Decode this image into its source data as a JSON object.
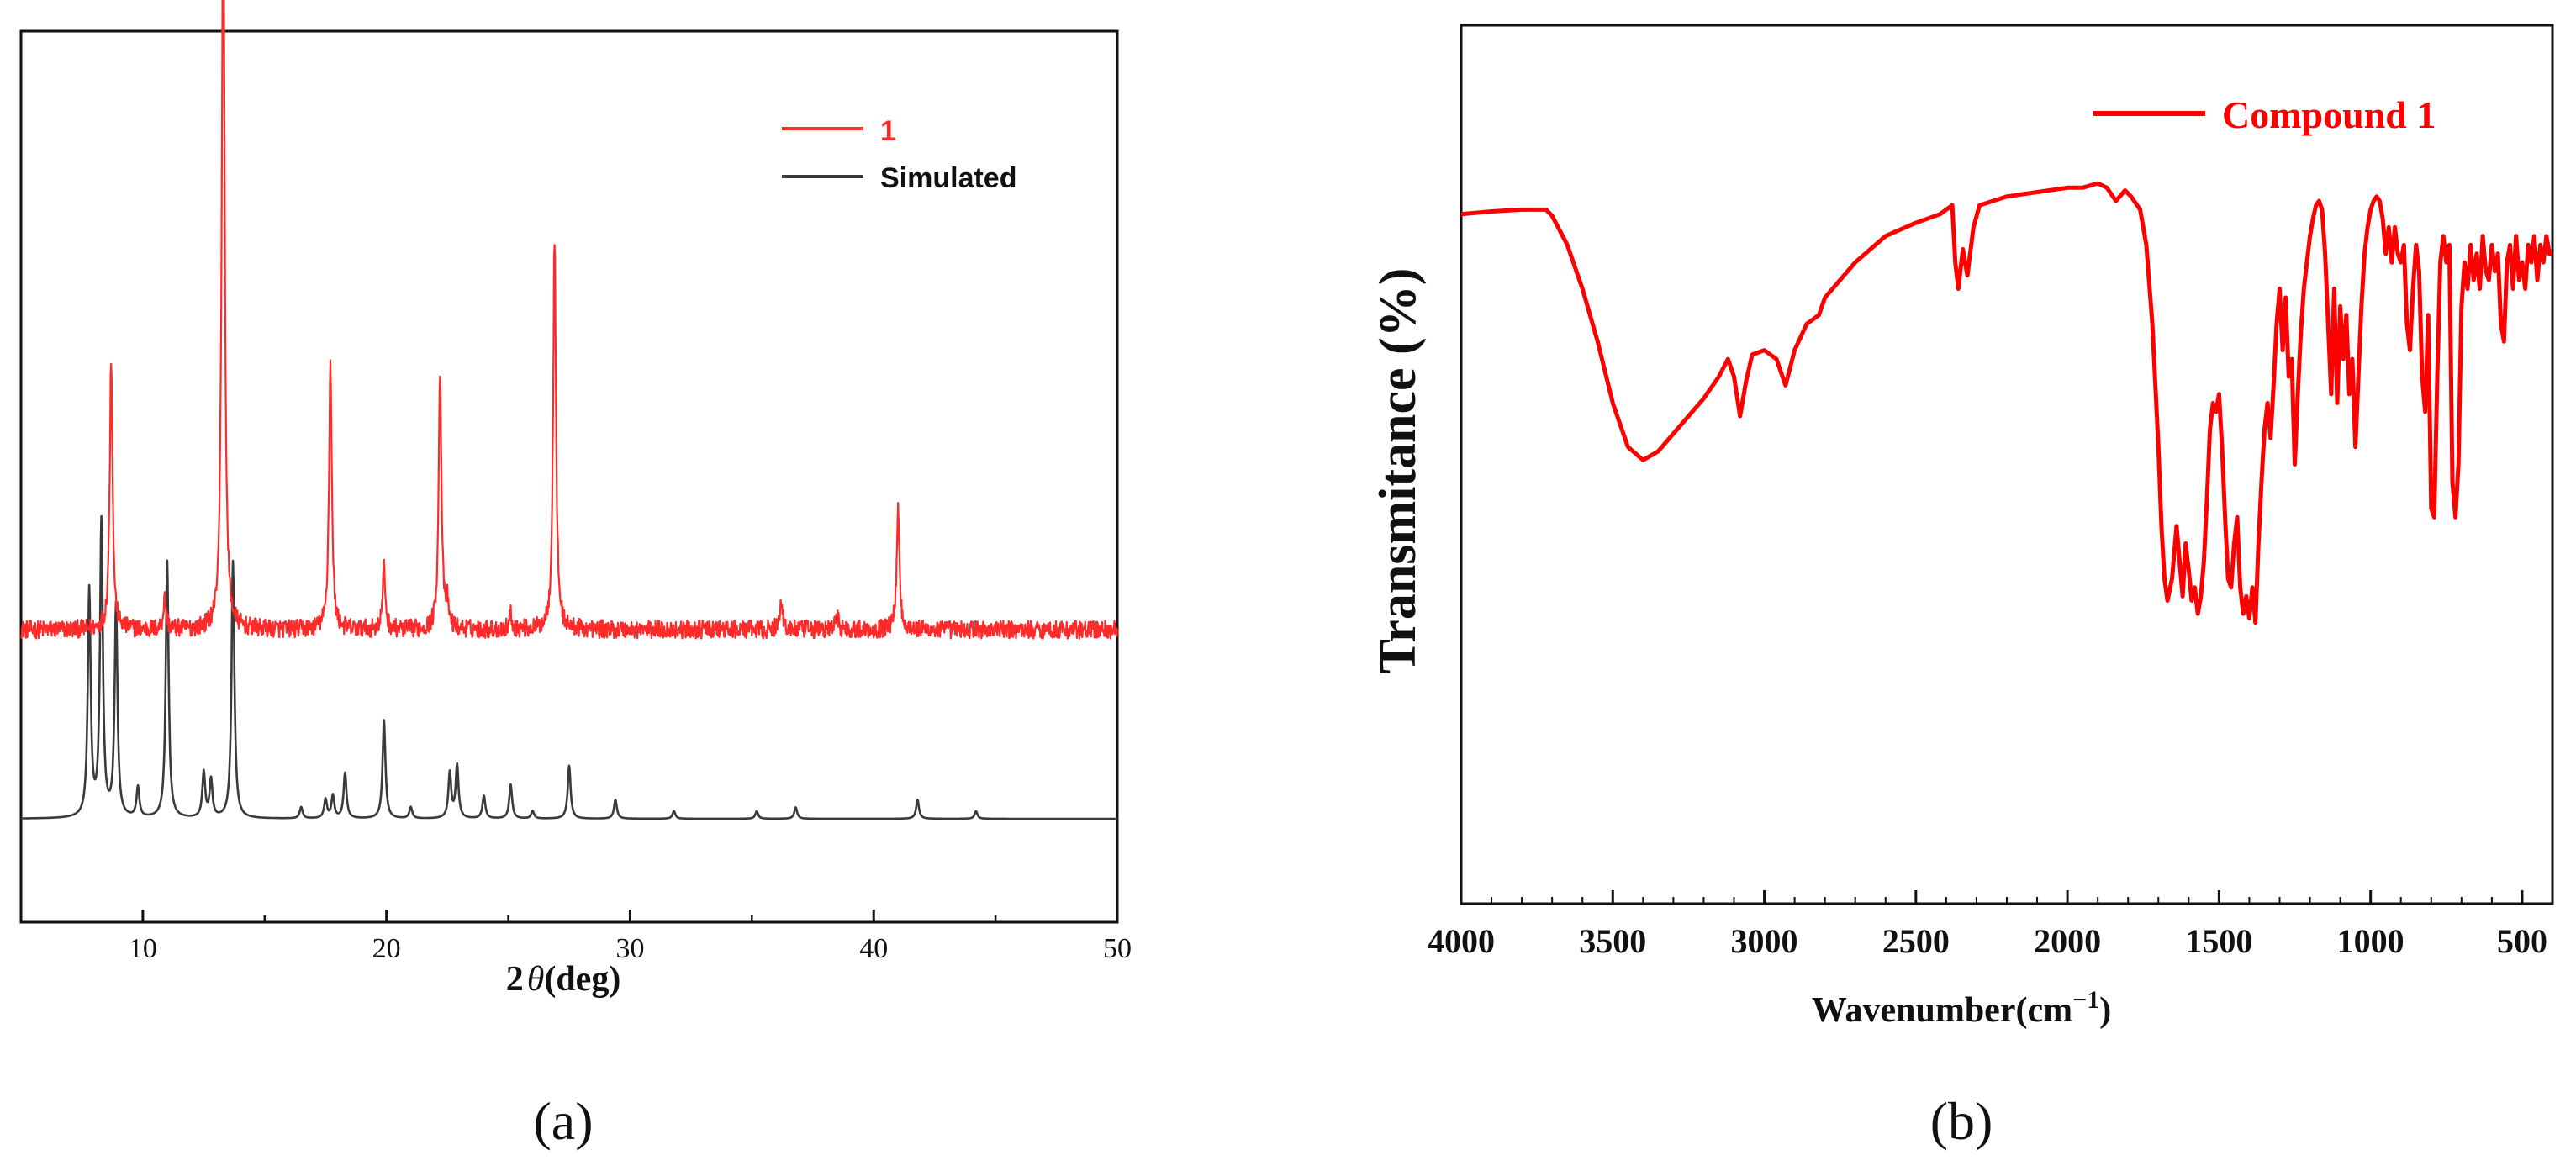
{
  "colors": {
    "red": "#ff2a2a",
    "red_b": "#ff0000",
    "dark": "#3a3a3a",
    "axis": "#111111"
  },
  "chart_data": [
    {
      "type": "line",
      "panel_label": "(a)",
      "xlabel_prefix": "2",
      "xlabel_symbol": "θ",
      "xlabel_suffix": "(deg)",
      "ylabel": "",
      "xlim": [
        5,
        50
      ],
      "ylim": [
        0,
        100
      ],
      "xticks": [
        10,
        20,
        30,
        40,
        50
      ],
      "legend": {
        "position": "top-right"
      },
      "series": [
        {
          "name": "1",
          "color": "#ff2a2a",
          "baseline": 29,
          "noise": 1.2,
          "peaks": [
            [
              8.7,
              36
            ],
            [
              10.9,
              4
            ],
            [
              13.3,
              101
            ],
            [
              17.7,
              35
            ],
            [
              19.9,
              8
            ],
            [
              22.2,
              34
            ],
            [
              22.5,
              3
            ],
            [
              25.1,
              2
            ],
            [
              26.9,
              52
            ],
            [
              36.2,
              4
            ],
            [
              38.5,
              2
            ],
            [
              41.0,
              16
            ]
          ]
        },
        {
          "name": "Simulated",
          "color": "#3a3a3a",
          "baseline": 4,
          "noise": 0,
          "peaks": [
            [
              7.8,
              30
            ],
            [
              8.3,
              39
            ],
            [
              8.9,
              28
            ],
            [
              9.8,
              4
            ],
            [
              11.0,
              34
            ],
            [
              12.5,
              6
            ],
            [
              12.8,
              5
            ],
            [
              13.7,
              34
            ],
            [
              16.5,
              1.5
            ],
            [
              17.5,
              2.5
            ],
            [
              17.8,
              3
            ],
            [
              18.3,
              6
            ],
            [
              19.9,
              13
            ],
            [
              21.0,
              1.5
            ],
            [
              22.6,
              6
            ],
            [
              22.9,
              7
            ],
            [
              24.0,
              3
            ],
            [
              25.1,
              4.5
            ],
            [
              26.0,
              1
            ],
            [
              27.5,
              7
            ],
            [
              29.4,
              2.5
            ],
            [
              31.8,
              1
            ],
            [
              35.2,
              1
            ],
            [
              36.8,
              1.5
            ],
            [
              41.8,
              2.5
            ],
            [
              44.2,
              1
            ]
          ]
        }
      ]
    },
    {
      "type": "line",
      "panel_label": "(b)",
      "xlabel": "Wavenumber(cm",
      "xlabel_sup": "−1",
      "xlabel_close": ")",
      "ylabel": "Transmitance (%)",
      "xlim": [
        4000,
        400
      ],
      "ylim": [
        0,
        100
      ],
      "xticks": [
        4000,
        3500,
        3000,
        2500,
        2000,
        1500,
        1000,
        500
      ],
      "legend": {
        "position": "top-right"
      },
      "series": [
        {
          "name": "Compound 1",
          "color": "#ff0000",
          "points": [
            [
              4000,
              78.5
            ],
            [
              3900,
              78.8
            ],
            [
              3800,
              79
            ],
            [
              3720,
              79
            ],
            [
              3700,
              78.3
            ],
            [
              3650,
              75
            ],
            [
              3600,
              70
            ],
            [
              3550,
              64
            ],
            [
              3500,
              57
            ],
            [
              3450,
              52
            ],
            [
              3400,
              50.5
            ],
            [
              3350,
              51.5
            ],
            [
              3300,
              53.5
            ],
            [
              3250,
              55.5
            ],
            [
              3200,
              57.5
            ],
            [
              3150,
              60
            ],
            [
              3120,
              62
            ],
            [
              3100,
              60
            ],
            [
              3080,
              55.5
            ],
            [
              3060,
              59.5
            ],
            [
              3040,
              62.5
            ],
            [
              3000,
              63
            ],
            [
              2960,
              62
            ],
            [
              2930,
              59
            ],
            [
              2900,
              63
            ],
            [
              2860,
              66
            ],
            [
              2820,
              67
            ],
            [
              2800,
              69
            ],
            [
              2700,
              73
            ],
            [
              2600,
              76
            ],
            [
              2500,
              77.5
            ],
            [
              2420,
              78.5
            ],
            [
              2380,
              79.5
            ],
            [
              2370,
              73
            ],
            [
              2360,
              70
            ],
            [
              2345,
              74.5
            ],
            [
              2330,
              71.5
            ],
            [
              2310,
              77
            ],
            [
              2290,
              79.5
            ],
            [
              2200,
              80.5
            ],
            [
              2100,
              81
            ],
            [
              2000,
              81.5
            ],
            [
              1950,
              81.5
            ],
            [
              1920,
              81.8
            ],
            [
              1900,
              82
            ],
            [
              1870,
              81.5
            ],
            [
              1840,
              80
            ],
            [
              1810,
              81.2
            ],
            [
              1790,
              80.5
            ],
            [
              1760,
              79
            ],
            [
              1740,
              75
            ],
            [
              1720,
              66
            ],
            [
              1700,
              52
            ],
            [
              1690,
              43
            ],
            [
              1680,
              37
            ],
            [
              1670,
              34.5
            ],
            [
              1655,
              37
            ],
            [
              1640,
              43
            ],
            [
              1630,
              39
            ],
            [
              1620,
              35
            ],
            [
              1610,
              41
            ],
            [
              1600,
              38
            ],
            [
              1590,
              34.5
            ],
            [
              1580,
              36
            ],
            [
              1570,
              33
            ],
            [
              1560,
              35
            ],
            [
              1550,
              39
            ],
            [
              1540,
              46
            ],
            [
              1530,
              54
            ],
            [
              1520,
              57
            ],
            [
              1510,
              56
            ],
            [
              1500,
              58
            ],
            [
              1490,
              52
            ],
            [
              1480,
              44
            ],
            [
              1470,
              37
            ],
            [
              1460,
              36
            ],
            [
              1450,
              41
            ],
            [
              1440,
              44
            ],
            [
              1430,
              36
            ],
            [
              1420,
              33
            ],
            [
              1410,
              35
            ],
            [
              1400,
              32.5
            ],
            [
              1390,
              36
            ],
            [
              1380,
              32
            ],
            [
              1370,
              41
            ],
            [
              1360,
              48
            ],
            [
              1350,
              54
            ],
            [
              1340,
              57
            ],
            [
              1330,
              53
            ],
            [
              1320,
              59
            ],
            [
              1310,
              66
            ],
            [
              1300,
              70
            ],
            [
              1290,
              63
            ],
            [
              1280,
              69
            ],
            [
              1270,
              60
            ],
            [
              1260,
              62
            ],
            [
              1250,
              50
            ],
            [
              1240,
              58
            ],
            [
              1230,
              65
            ],
            [
              1220,
              70
            ],
            [
              1210,
              73
            ],
            [
              1200,
              76
            ],
            [
              1190,
              78
            ],
            [
              1180,
              79.5
            ],
            [
              1170,
              80
            ],
            [
              1160,
              79
            ],
            [
              1150,
              74
            ],
            [
              1140,
              66
            ],
            [
              1130,
              58
            ],
            [
              1120,
              70
            ],
            [
              1110,
              57
            ],
            [
              1100,
              68
            ],
            [
              1090,
              62
            ],
            [
              1080,
              67
            ],
            [
              1070,
              58
            ],
            [
              1060,
              62
            ],
            [
              1050,
              52
            ],
            [
              1040,
              60
            ],
            [
              1030,
              68
            ],
            [
              1020,
              74
            ],
            [
              1010,
              77
            ],
            [
              1000,
              79
            ],
            [
              990,
              80
            ],
            [
              980,
              80.5
            ],
            [
              970,
              80
            ],
            [
              960,
              78
            ],
            [
              950,
              74
            ],
            [
              940,
              77
            ],
            [
              930,
              73
            ],
            [
              920,
              77
            ],
            [
              910,
              74
            ],
            [
              900,
              73
            ],
            [
              890,
              75
            ],
            [
              880,
              66
            ],
            [
              870,
              63
            ],
            [
              860,
              70
            ],
            [
              850,
              75
            ],
            [
              840,
              72
            ],
            [
              830,
              60
            ],
            [
              820,
              56
            ],
            [
              810,
              67
            ],
            [
              800,
              45
            ],
            [
              790,
              44
            ],
            [
              780,
              60
            ],
            [
              770,
              73
            ],
            [
              760,
              76
            ],
            [
              750,
              73
            ],
            [
              740,
              75
            ],
            [
              730,
              48
            ],
            [
              720,
              44
            ],
            [
              710,
              50
            ],
            [
              700,
              68
            ],
            [
              690,
              73
            ],
            [
              680,
              70
            ],
            [
              670,
              75
            ],
            [
              660,
              71
            ],
            [
              650,
              74
            ],
            [
              640,
              70
            ],
            [
              630,
              76
            ],
            [
              620,
              72
            ],
            [
              610,
              71
            ],
            [
              600,
              75
            ],
            [
              590,
              72
            ],
            [
              580,
              74
            ],
            [
              570,
              66
            ],
            [
              560,
              64
            ],
            [
              550,
              73
            ],
            [
              540,
              75
            ],
            [
              530,
              70
            ],
            [
              520,
              76
            ],
            [
              510,
              71
            ],
            [
              500,
              73
            ],
            [
              490,
              70
            ],
            [
              480,
              75
            ],
            [
              470,
              73
            ],
            [
              460,
              76
            ],
            [
              450,
              71
            ],
            [
              440,
              75
            ],
            [
              430,
              73
            ],
            [
              420,
              76
            ],
            [
              410,
              74
            ],
            [
              400,
              74
            ]
          ]
        }
      ]
    }
  ]
}
